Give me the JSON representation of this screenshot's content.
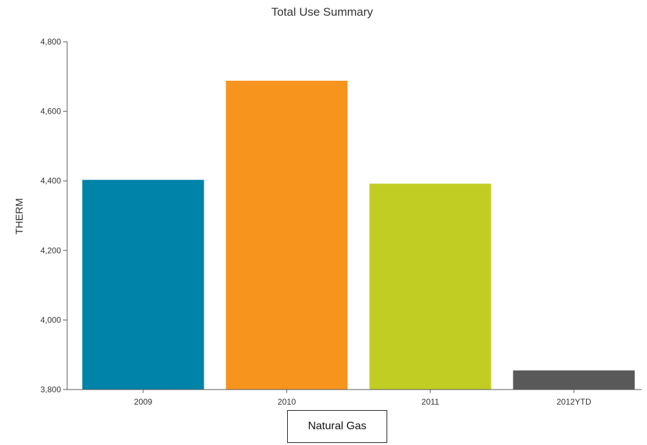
{
  "chart_data": {
    "type": "bar",
    "title": "Total Use Summary",
    "xlabel": "",
    "ylabel": "THERM",
    "categories": [
      "2009",
      "2010",
      "2011",
      "2012YTD"
    ],
    "values": [
      4403,
      4688,
      4392,
      3855
    ],
    "colors": [
      "#0083a9",
      "#f7941e",
      "#c2cd23",
      "#595959"
    ],
    "ylim": [
      3800,
      4800
    ],
    "yticks": [
      3800,
      4000,
      4200,
      4400,
      4600,
      4800
    ],
    "ytick_labels": [
      "3,800",
      "4,000",
      "4,200",
      "4,400",
      "4,600",
      "4,800"
    ],
    "grid": false,
    "legend": {
      "label": "Natural Gas",
      "placement": "bottom-center"
    }
  }
}
